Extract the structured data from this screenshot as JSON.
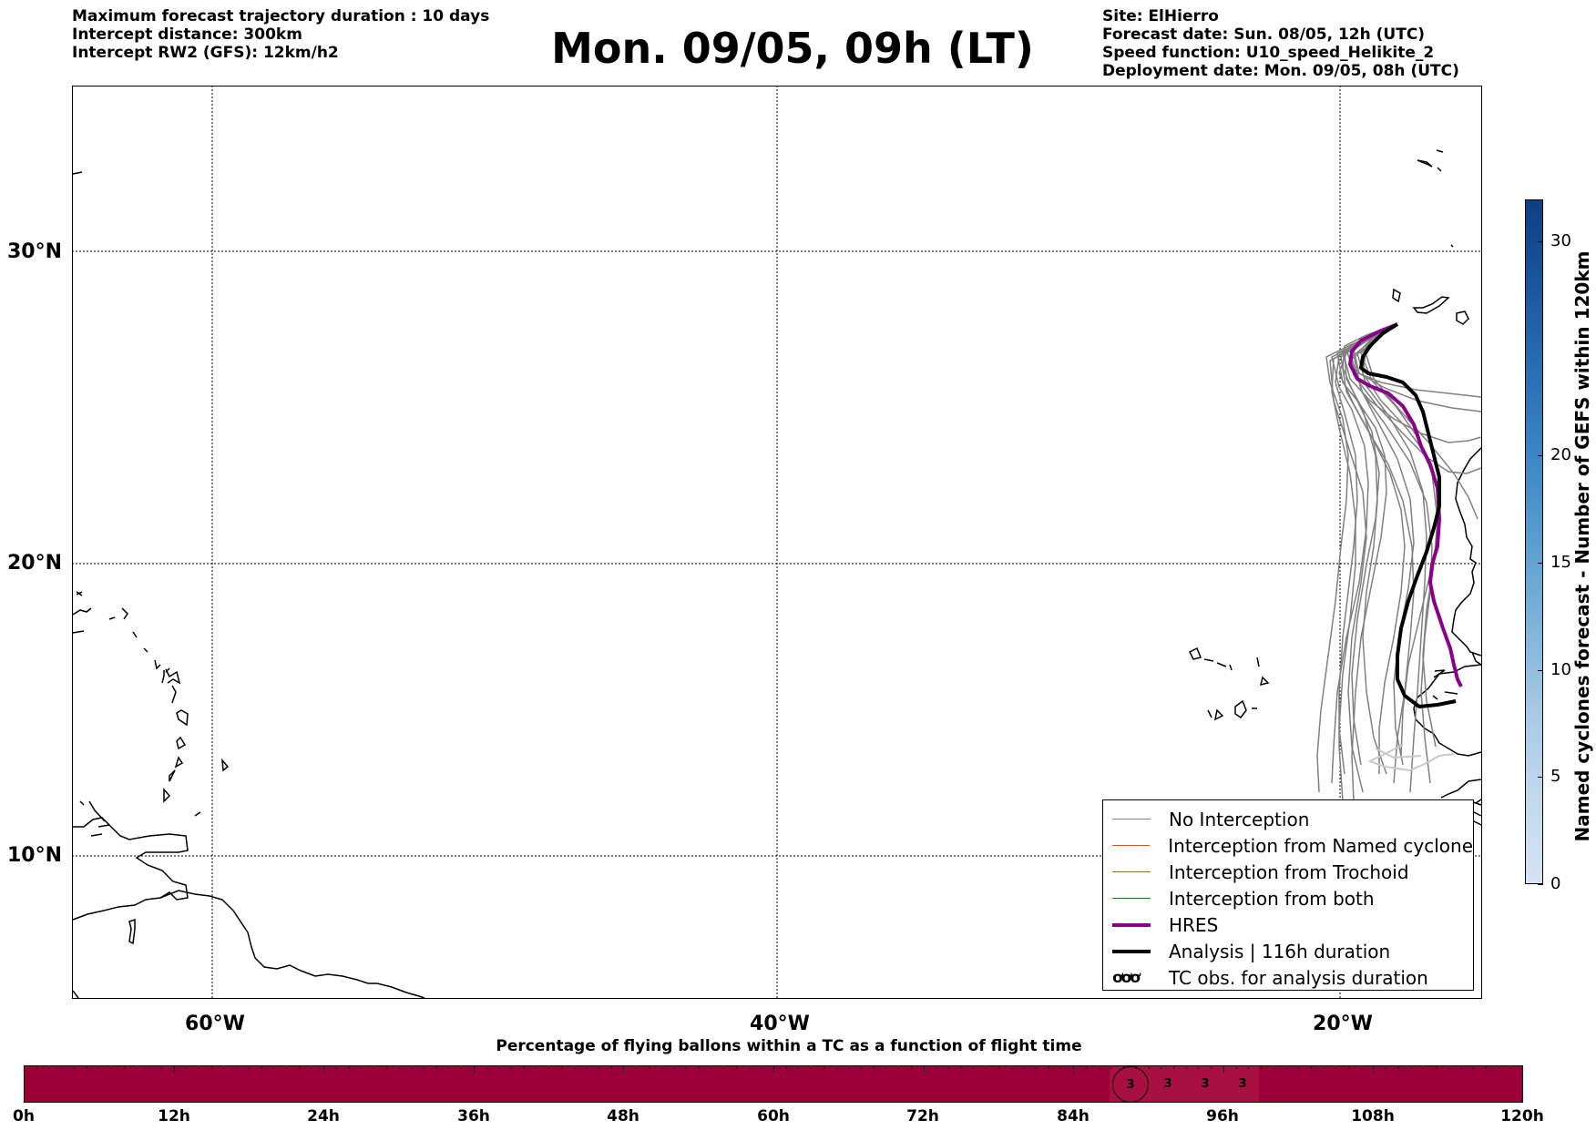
{
  "header": {
    "left_lines": [
      "Maximum forecast trajectory duration : 10 days",
      "Intercept distance: 300km",
      "Intercept RW2 (GFS):  12km/h2"
    ],
    "title": "Mon. 09/05, 09h (LT)",
    "right_lines": [
      "Site: ElHierro",
      "Forecast date: Sun. 08/05, 12h (UTC)",
      "Speed function: U10_speed_Helikite_2",
      "Deployment date: Mon. 09/05, 08h (UTC)"
    ]
  },
  "map": {
    "lat_labels": [
      "30°N",
      "20°N",
      "10°N"
    ],
    "lon_labels": [
      "60°W",
      "40°W",
      "20°W"
    ],
    "colors": {
      "ensemble": "#808080",
      "hres": "#8b008b",
      "analysis": "#000000",
      "coast": "#000000",
      "named_cyclone": "#ff4500",
      "trochoid": "#808000",
      "both": "#008000"
    }
  },
  "legend": {
    "items": [
      {
        "label": "No Interception",
        "color": "#808080",
        "width": 1
      },
      {
        "label": "Interception from Named cyclone",
        "color": "#ff4500",
        "width": 1
      },
      {
        "label": "Interception from Trochoid",
        "color": "#808000",
        "width": 1
      },
      {
        "label": "Interception from both",
        "color": "#008000",
        "width": 1
      },
      {
        "label": "HRES",
        "color": "#8b008b",
        "width": 4
      },
      {
        "label": "Analysis | 116h duration",
        "color": "#000000",
        "width": 4
      }
    ],
    "obs_symbol": "ơơơ",
    "obs_label": "TC obs. for analysis duration"
  },
  "colorbar": {
    "label": "Named cyclones forecast - Number of GEFS within 120km",
    "ticks": [
      "0",
      "5",
      "10",
      "15",
      "20",
      "30"
    ],
    "colors": [
      "#d6e4f4",
      "#c2d8ee",
      "#a7c9e5",
      "#7fb4db",
      "#5a9ed1",
      "#3c86c4",
      "#2a6eb3",
      "#1a569e",
      "#0f3f83"
    ]
  },
  "timeline": {
    "title": "Percentage of flying ballons within a TC as a function of flight time",
    "ticks": [
      "0h",
      "12h",
      "24h",
      "36h",
      "48h",
      "60h",
      "72h",
      "84h",
      "96h",
      "108h",
      "120h"
    ],
    "bar_color": "#9b0038",
    "cells": [
      "3",
      "3",
      "3",
      "3"
    ]
  }
}
